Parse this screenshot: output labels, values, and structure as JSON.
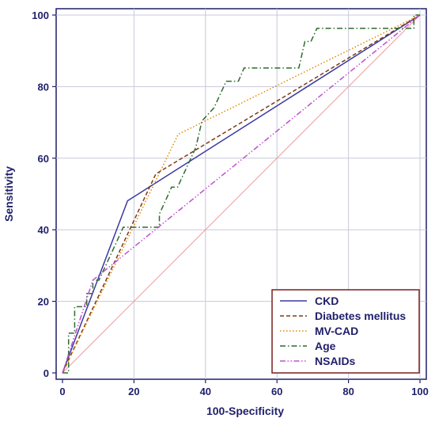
{
  "chart_data": {
    "type": "line",
    "title": "",
    "xlabel": "100-Specificity",
    "ylabel": "Sensitivity",
    "xlim": [
      0,
      100
    ],
    "ylim": [
      0,
      100
    ],
    "xticks": [
      0,
      20,
      40,
      60,
      80,
      100
    ],
    "yticks": [
      0,
      20,
      40,
      60,
      80,
      100
    ],
    "grid": true,
    "legend_position": "bottom-right",
    "reference_line": {
      "x": [
        0,
        100
      ],
      "y": [
        0,
        100
      ],
      "color": "#e8a0a0"
    },
    "series": [
      {
        "name": "CKD",
        "style": "solid",
        "color": "#3a3aa0",
        "x": [
          0,
          18.2,
          100
        ],
        "y": [
          0,
          48.1,
          100
        ]
      },
      {
        "name": "Diabetes mellitus",
        "style": "dashed",
        "color": "#7a3b16",
        "x": [
          0,
          26.1,
          100
        ],
        "y": [
          0,
          55.6,
          100
        ]
      },
      {
        "name": "MV-CAD",
        "style": "dotted",
        "color": "#e08a00",
        "x": [
          0,
          32.4,
          100
        ],
        "y": [
          0,
          66.7,
          100
        ]
      },
      {
        "name": "Age",
        "style": "dashdot",
        "color": "#2f6b2f",
        "x": [
          0,
          1.7,
          1.7,
          3.4,
          3.4,
          6.8,
          6.8,
          8.5,
          8.5,
          10.2,
          13.6,
          15.3,
          17,
          18.6,
          20.3,
          22,
          23.7,
          25.4,
          27.1,
          27.1,
          28.8,
          30.5,
          32.2,
          33.9,
          35.6,
          37.3,
          39,
          42.4,
          45.8,
          47.5,
          49.2,
          50.8,
          52.5,
          54.2,
          55.9,
          57.6,
          59.3,
          61,
          62.7,
          64.4,
          66.1,
          67.8,
          69.5,
          71.2,
          72.9,
          74.6,
          76.3,
          78,
          79.7,
          81.4,
          83.1,
          84.7,
          86.4,
          88.1,
          89.8,
          91.5,
          93.2,
          94.9,
          96.6,
          98.3,
          98.3,
          100
        ],
        "y": [
          0,
          0,
          11.1,
          11.1,
          18.5,
          18.5,
          22.2,
          22.2,
          25.9,
          25.9,
          33.3,
          37,
          40.7,
          40.7,
          40.7,
          40.7,
          40.7,
          40.7,
          40.7,
          44.4,
          48.1,
          51.9,
          51.9,
          55.6,
          59.3,
          63,
          70.4,
          74.1,
          81.5,
          81.5,
          81.5,
          85.2,
          85.2,
          85.2,
          85.2,
          85.2,
          85.2,
          85.2,
          85.2,
          85.2,
          85.2,
          92.6,
          92.6,
          96.3,
          96.3,
          96.3,
          96.3,
          96.3,
          96.3,
          96.3,
          96.3,
          96.3,
          96.3,
          96.3,
          96.3,
          96.3,
          96.3,
          96.3,
          96.3,
          96.3,
          100,
          100
        ]
      },
      {
        "name": "NSAIDs",
        "style": "dashdotdot",
        "color": "#c050d0",
        "x": [
          0,
          8.5,
          100
        ],
        "y": [
          0,
          25.9,
          100
        ]
      }
    ]
  }
}
